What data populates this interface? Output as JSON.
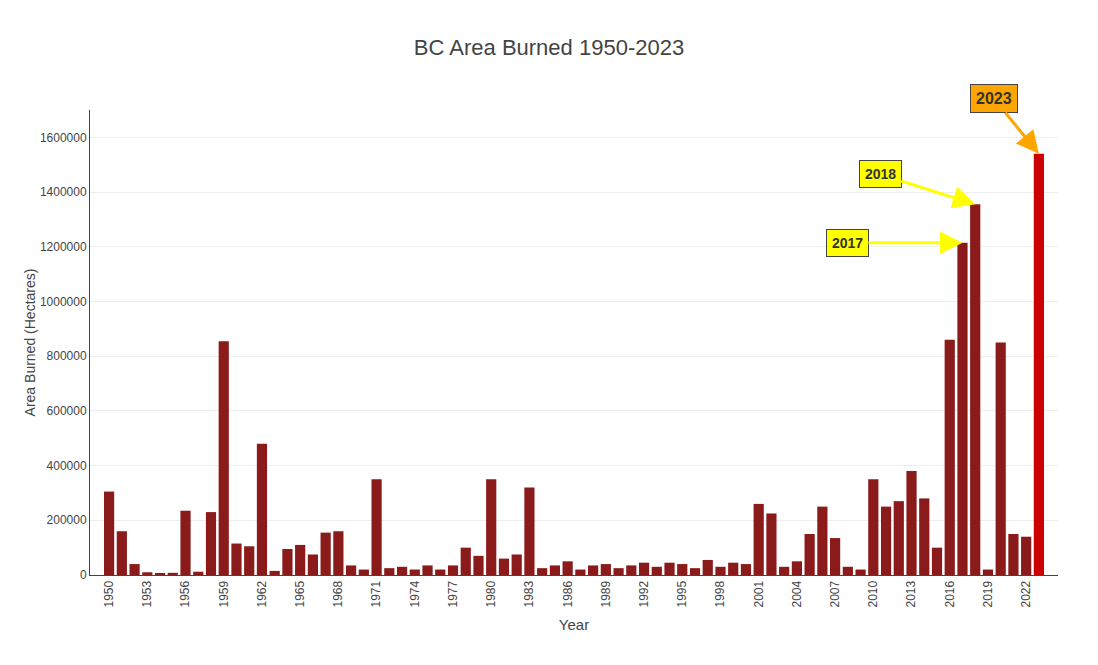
{
  "chart_data": {
    "type": "bar",
    "title": "BC Area Burned 1950-2023",
    "xlabel": "Year",
    "ylabel": "Area Burned (Hectares)",
    "x": [
      1950,
      1951,
      1952,
      1953,
      1954,
      1955,
      1956,
      1957,
      1958,
      1959,
      1960,
      1961,
      1962,
      1963,
      1964,
      1965,
      1966,
      1967,
      1968,
      1969,
      1970,
      1971,
      1972,
      1973,
      1974,
      1975,
      1976,
      1977,
      1978,
      1979,
      1980,
      1981,
      1982,
      1983,
      1984,
      1985,
      1986,
      1987,
      1988,
      1989,
      1990,
      1991,
      1992,
      1993,
      1994,
      1995,
      1996,
      1997,
      1998,
      1999,
      2000,
      2001,
      2002,
      2003,
      2004,
      2005,
      2006,
      2007,
      2008,
      2009,
      2010,
      2011,
      2012,
      2013,
      2014,
      2015,
      2016,
      2017,
      2018,
      2019,
      2020,
      2021,
      2022,
      2023
    ],
    "values": [
      305000,
      160000,
      40000,
      10000,
      5000,
      8000,
      235000,
      12000,
      230000,
      855000,
      115000,
      105000,
      480000,
      15000,
      95000,
      110000,
      75000,
      155000,
      160000,
      35000,
      20000,
      350000,
      25000,
      30000,
      20000,
      35000,
      20000,
      35000,
      100000,
      70000,
      350000,
      60000,
      75000,
      320000,
      25000,
      35000,
      50000,
      20000,
      35000,
      40000,
      25000,
      35000,
      45000,
      30000,
      45000,
      40000,
      25000,
      55000,
      30000,
      45000,
      40000,
      260000,
      225000,
      30000,
      50000,
      150000,
      250000,
      135000,
      30000,
      20000,
      350000,
      250000,
      270000,
      380000,
      280000,
      100000,
      860000,
      1215000,
      1355000,
      20000,
      850000,
      150000,
      140000,
      1540000
    ],
    "colors": [
      "#8B1A1A",
      "#8B1A1A",
      "#8B1A1A",
      "#8B1A1A",
      "#8B1A1A",
      "#8B1A1A",
      "#8B1A1A",
      "#8B1A1A",
      "#8B1A1A",
      "#8B1A1A",
      "#8B1A1A",
      "#8B1A1A",
      "#8B1A1A",
      "#8B1A1A",
      "#8B1A1A",
      "#8B1A1A",
      "#8B1A1A",
      "#8B1A1A",
      "#8B1A1A",
      "#8B1A1A",
      "#8B1A1A",
      "#8B1A1A",
      "#8B1A1A",
      "#8B1A1A",
      "#8B1A1A",
      "#8B1A1A",
      "#8B1A1A",
      "#8B1A1A",
      "#8B1A1A",
      "#8B1A1A",
      "#8B1A1A",
      "#8B1A1A",
      "#8B1A1A",
      "#8B1A1A",
      "#8B1A1A",
      "#8B1A1A",
      "#8B1A1A",
      "#8B1A1A",
      "#8B1A1A",
      "#8B1A1A",
      "#8B1A1A",
      "#8B1A1A",
      "#8B1A1A",
      "#8B1A1A",
      "#8B1A1A",
      "#8B1A1A",
      "#8B1A1A",
      "#8B1A1A",
      "#8B1A1A",
      "#8B1A1A",
      "#8B1A1A",
      "#8B1A1A",
      "#8B1A1A",
      "#8B1A1A",
      "#8B1A1A",
      "#8B1A1A",
      "#8B1A1A",
      "#8B1A1A",
      "#8B1A1A",
      "#8B1A1A",
      "#8B1A1A",
      "#8B1A1A",
      "#8B1A1A",
      "#8B1A1A",
      "#8B1A1A",
      "#8B1A1A",
      "#8B1A1A",
      "#8B1A1A",
      "#8B1A1A",
      "#8B1A1A",
      "#8B1A1A",
      "#8B1A1A",
      "#8B1A1A",
      "#CC0000"
    ],
    "xlim": [
      1948.5,
      2024.5
    ],
    "xticks": [
      1950,
      1953,
      1956,
      1959,
      1962,
      1965,
      1968,
      1971,
      1974,
      1977,
      1980,
      1983,
      1986,
      1989,
      1992,
      1995,
      1998,
      2001,
      2004,
      2007,
      2010,
      2013,
      2016,
      2019,
      2022
    ],
    "ylim": [
      0,
      1700000
    ],
    "yticks": [
      0,
      200000,
      400000,
      600000,
      800000,
      1000000,
      1200000,
      1400000,
      1600000
    ],
    "grid": true,
    "annotations": [
      {
        "text": "2023",
        "x": 2023,
        "y": 1540000,
        "color": "#FFA500"
      },
      {
        "text": "2018",
        "x": 2018,
        "y": 1355000,
        "color": "#FFFF00"
      },
      {
        "text": "2017",
        "x": 2017,
        "y": 1215000,
        "color": "#FFFF00"
      }
    ]
  }
}
